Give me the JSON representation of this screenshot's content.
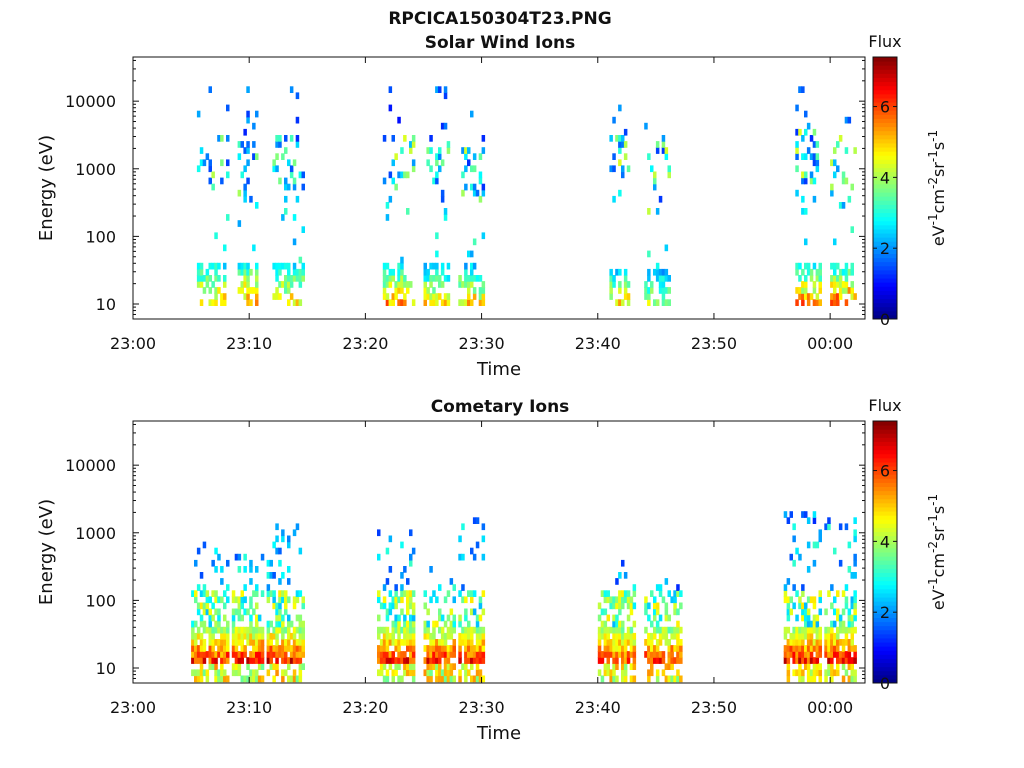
{
  "figure_title": "RPCICA150304T23.PNG",
  "colors": {
    "background": "#ffffff",
    "axis": "#111111",
    "colormap": "jet"
  },
  "chart_data": [
    {
      "type": "heatmap",
      "title": "Solar Wind Ions",
      "xlabel": "Time",
      "ylabel": "Energy (eV)",
      "yscale": "log",
      "ylim": [
        6,
        45000
      ],
      "xlim_minutes": [
        0,
        63
      ],
      "x_ticks": [
        "23:00",
        "23:10",
        "23:20",
        "23:30",
        "23:40",
        "23:50",
        "00:00"
      ],
      "y_ticks": [
        "10",
        "100",
        "1000",
        "10000"
      ],
      "colorbar": {
        "label": "Flux",
        "units_label": "eV-1cm-2sr-1s-1",
        "range": [
          0,
          7.4
        ],
        "ticks": [
          "0",
          "2",
          "4",
          "6"
        ]
      },
      "bursts": [
        {
          "start": "23:05:30",
          "end": "23:08:00",
          "high_band_eV": [
            400,
            3500
          ],
          "low_band_eV": [
            8,
            40
          ],
          "peak_flux": 5.8
        },
        {
          "start": "23:09:00",
          "end": "23:10:30",
          "high_band_eV": [
            300,
            2500
          ],
          "low_band_eV": [
            8,
            35
          ],
          "peak_flux": 6.4
        },
        {
          "start": "23:12:00",
          "end": "23:14:30",
          "high_band_eV": [
            400,
            3000
          ],
          "low_band_eV": [
            8,
            35
          ],
          "peak_flux": 5.8
        },
        {
          "start": "23:21:30",
          "end": "23:24:00",
          "high_band_eV": [
            400,
            3000
          ],
          "low_band_eV": [
            8,
            35
          ],
          "peak_flux": 6.2
        },
        {
          "start": "23:25:00",
          "end": "23:27:00",
          "high_band_eV": [
            300,
            3000
          ],
          "low_band_eV": [
            8,
            35
          ],
          "peak_flux": 5.4
        },
        {
          "start": "23:28:00",
          "end": "23:30:00",
          "high_band_eV": [
            300,
            2500
          ],
          "low_band_eV": [
            8,
            35
          ],
          "peak_flux": 5.6
        },
        {
          "start": "23:41:00",
          "end": "23:42:30",
          "high_band_eV": [
            300,
            3000
          ],
          "low_band_eV": [
            8,
            30
          ],
          "peak_flux": 5.4
        },
        {
          "start": "23:44:00",
          "end": "23:46:00",
          "high_band_eV": [
            200,
            3000
          ],
          "low_band_eV": [
            8,
            30
          ],
          "peak_flux": 4.8
        },
        {
          "start": "23:57:00",
          "end": "23:59:00",
          "high_band_eV": [
            300,
            3500
          ],
          "low_band_eV": [
            8,
            35
          ],
          "peak_flux": 6.2
        },
        {
          "start": "00:00:00",
          "end": "00:02:00",
          "high_band_eV": [
            300,
            3000
          ],
          "low_band_eV": [
            8,
            35
          ],
          "peak_flux": 6.6
        }
      ]
    },
    {
      "type": "heatmap",
      "title": "Cometary Ions",
      "xlabel": "Time",
      "ylabel": "Energy (eV)",
      "yscale": "log",
      "ylim": [
        6,
        45000
      ],
      "xlim_minutes": [
        0,
        63
      ],
      "x_ticks": [
        "23:00",
        "23:10",
        "23:20",
        "23:30",
        "23:40",
        "23:50",
        "00:00"
      ],
      "y_ticks": [
        "10",
        "100",
        "1000",
        "10000"
      ],
      "colorbar": {
        "label": "Flux",
        "units_label": "eV-1cm-2sr-1s-1",
        "range": [
          0,
          7.4
        ],
        "ticks": [
          "0",
          "2",
          "4",
          "6"
        ]
      },
      "bursts": [
        {
          "start": "23:05:00",
          "end": "23:08:00",
          "top_eV": 700,
          "core_eV": [
            10,
            40
          ],
          "peak_flux": 7.0
        },
        {
          "start": "23:08:30",
          "end": "23:11:00",
          "top_eV": 400,
          "core_eV": [
            10,
            40
          ],
          "peak_flux": 7.2
        },
        {
          "start": "23:11:30",
          "end": "23:14:30",
          "top_eV": 1500,
          "core_eV": [
            10,
            40
          ],
          "peak_flux": 7.2
        },
        {
          "start": "23:21:00",
          "end": "23:24:00",
          "top_eV": 1300,
          "core_eV": [
            10,
            40
          ],
          "peak_flux": 7.0
        },
        {
          "start": "23:25:00",
          "end": "23:27:30",
          "top_eV": 300,
          "core_eV": [
            10,
            40
          ],
          "peak_flux": 7.0
        },
        {
          "start": "23:28:00",
          "end": "23:30:00",
          "top_eV": 1500,
          "core_eV": [
            10,
            40
          ],
          "peak_flux": 7.0
        },
        {
          "start": "23:40:00",
          "end": "23:43:00",
          "top_eV": 500,
          "core_eV": [
            10,
            40
          ],
          "peak_flux": 6.8
        },
        {
          "start": "23:44:00",
          "end": "23:47:00",
          "top_eV": 300,
          "core_eV": [
            10,
            40
          ],
          "peak_flux": 6.8
        },
        {
          "start": "23:56:00",
          "end": "23:59:00",
          "top_eV": 2000,
          "core_eV": [
            10,
            40
          ],
          "peak_flux": 7.2
        },
        {
          "start": "23:59:30",
          "end": "00:02:00",
          "top_eV": 1500,
          "core_eV": [
            10,
            40
          ],
          "peak_flux": 7.2
        }
      ]
    }
  ]
}
